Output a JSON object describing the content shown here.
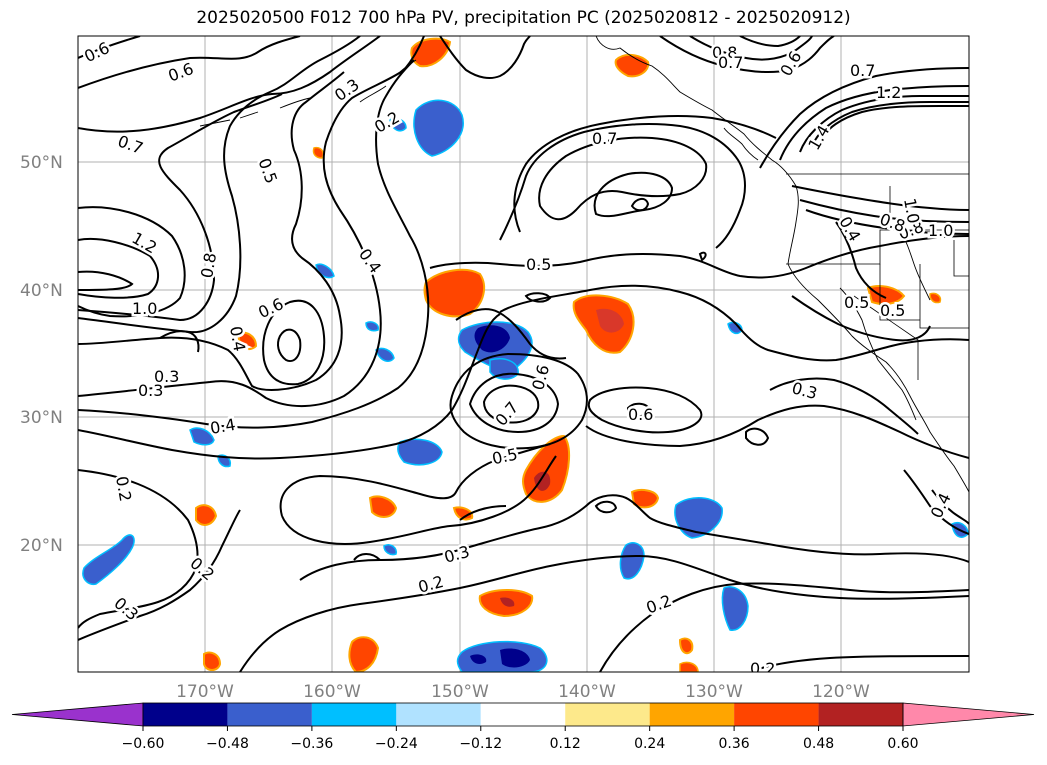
{
  "title": "2025020500 F012 700 hPa PV, precipitation PC (2025020812 - 2025020912)",
  "map": {
    "lat_ticks": [
      "50°N",
      "40°N",
      "30°N",
      "20°N"
    ],
    "lon_ticks": [
      "170°W",
      "160°W",
      "150°W",
      "140°W",
      "130°W",
      "120°W"
    ],
    "gridlines": true
  },
  "colorbar": {
    "levels": [
      "-0.60",
      "-0.48",
      "-0.36",
      "-0.24",
      "-0.12",
      "0.12",
      "0.24",
      "0.36",
      "0.48",
      "0.60"
    ],
    "colors": [
      "#9a32cd",
      "#00008b",
      "#3a5fcd",
      "#00bfff",
      "#b0e2ff",
      "#ffffff",
      "#fde98b",
      "#ffa500",
      "#ff4500",
      "#b22222",
      "#ff88aa"
    ],
    "extend": "both"
  },
  "contour_labels": [
    "0.6",
    "0.6",
    "0.3",
    "0.2",
    "0.7",
    "0.5",
    "0.8",
    "0.7",
    "0.6",
    "0.7",
    "1.2",
    "1.4",
    "0.7",
    "1.2",
    "0.8",
    "1.0",
    "0.6",
    "0.4",
    "0.5",
    "0.4",
    "0.8",
    "0.6",
    "0.3",
    "0.7",
    "0.5",
    "0.6",
    "0.3",
    "0.3",
    "0.4",
    "0.5",
    "0.5",
    "0.4",
    "0.2",
    "0.2",
    "0.3",
    "0.3",
    "0.2",
    "0.2",
    "0.2",
    "0.4",
    "0.8",
    "1.0",
    "1.0"
  ]
}
